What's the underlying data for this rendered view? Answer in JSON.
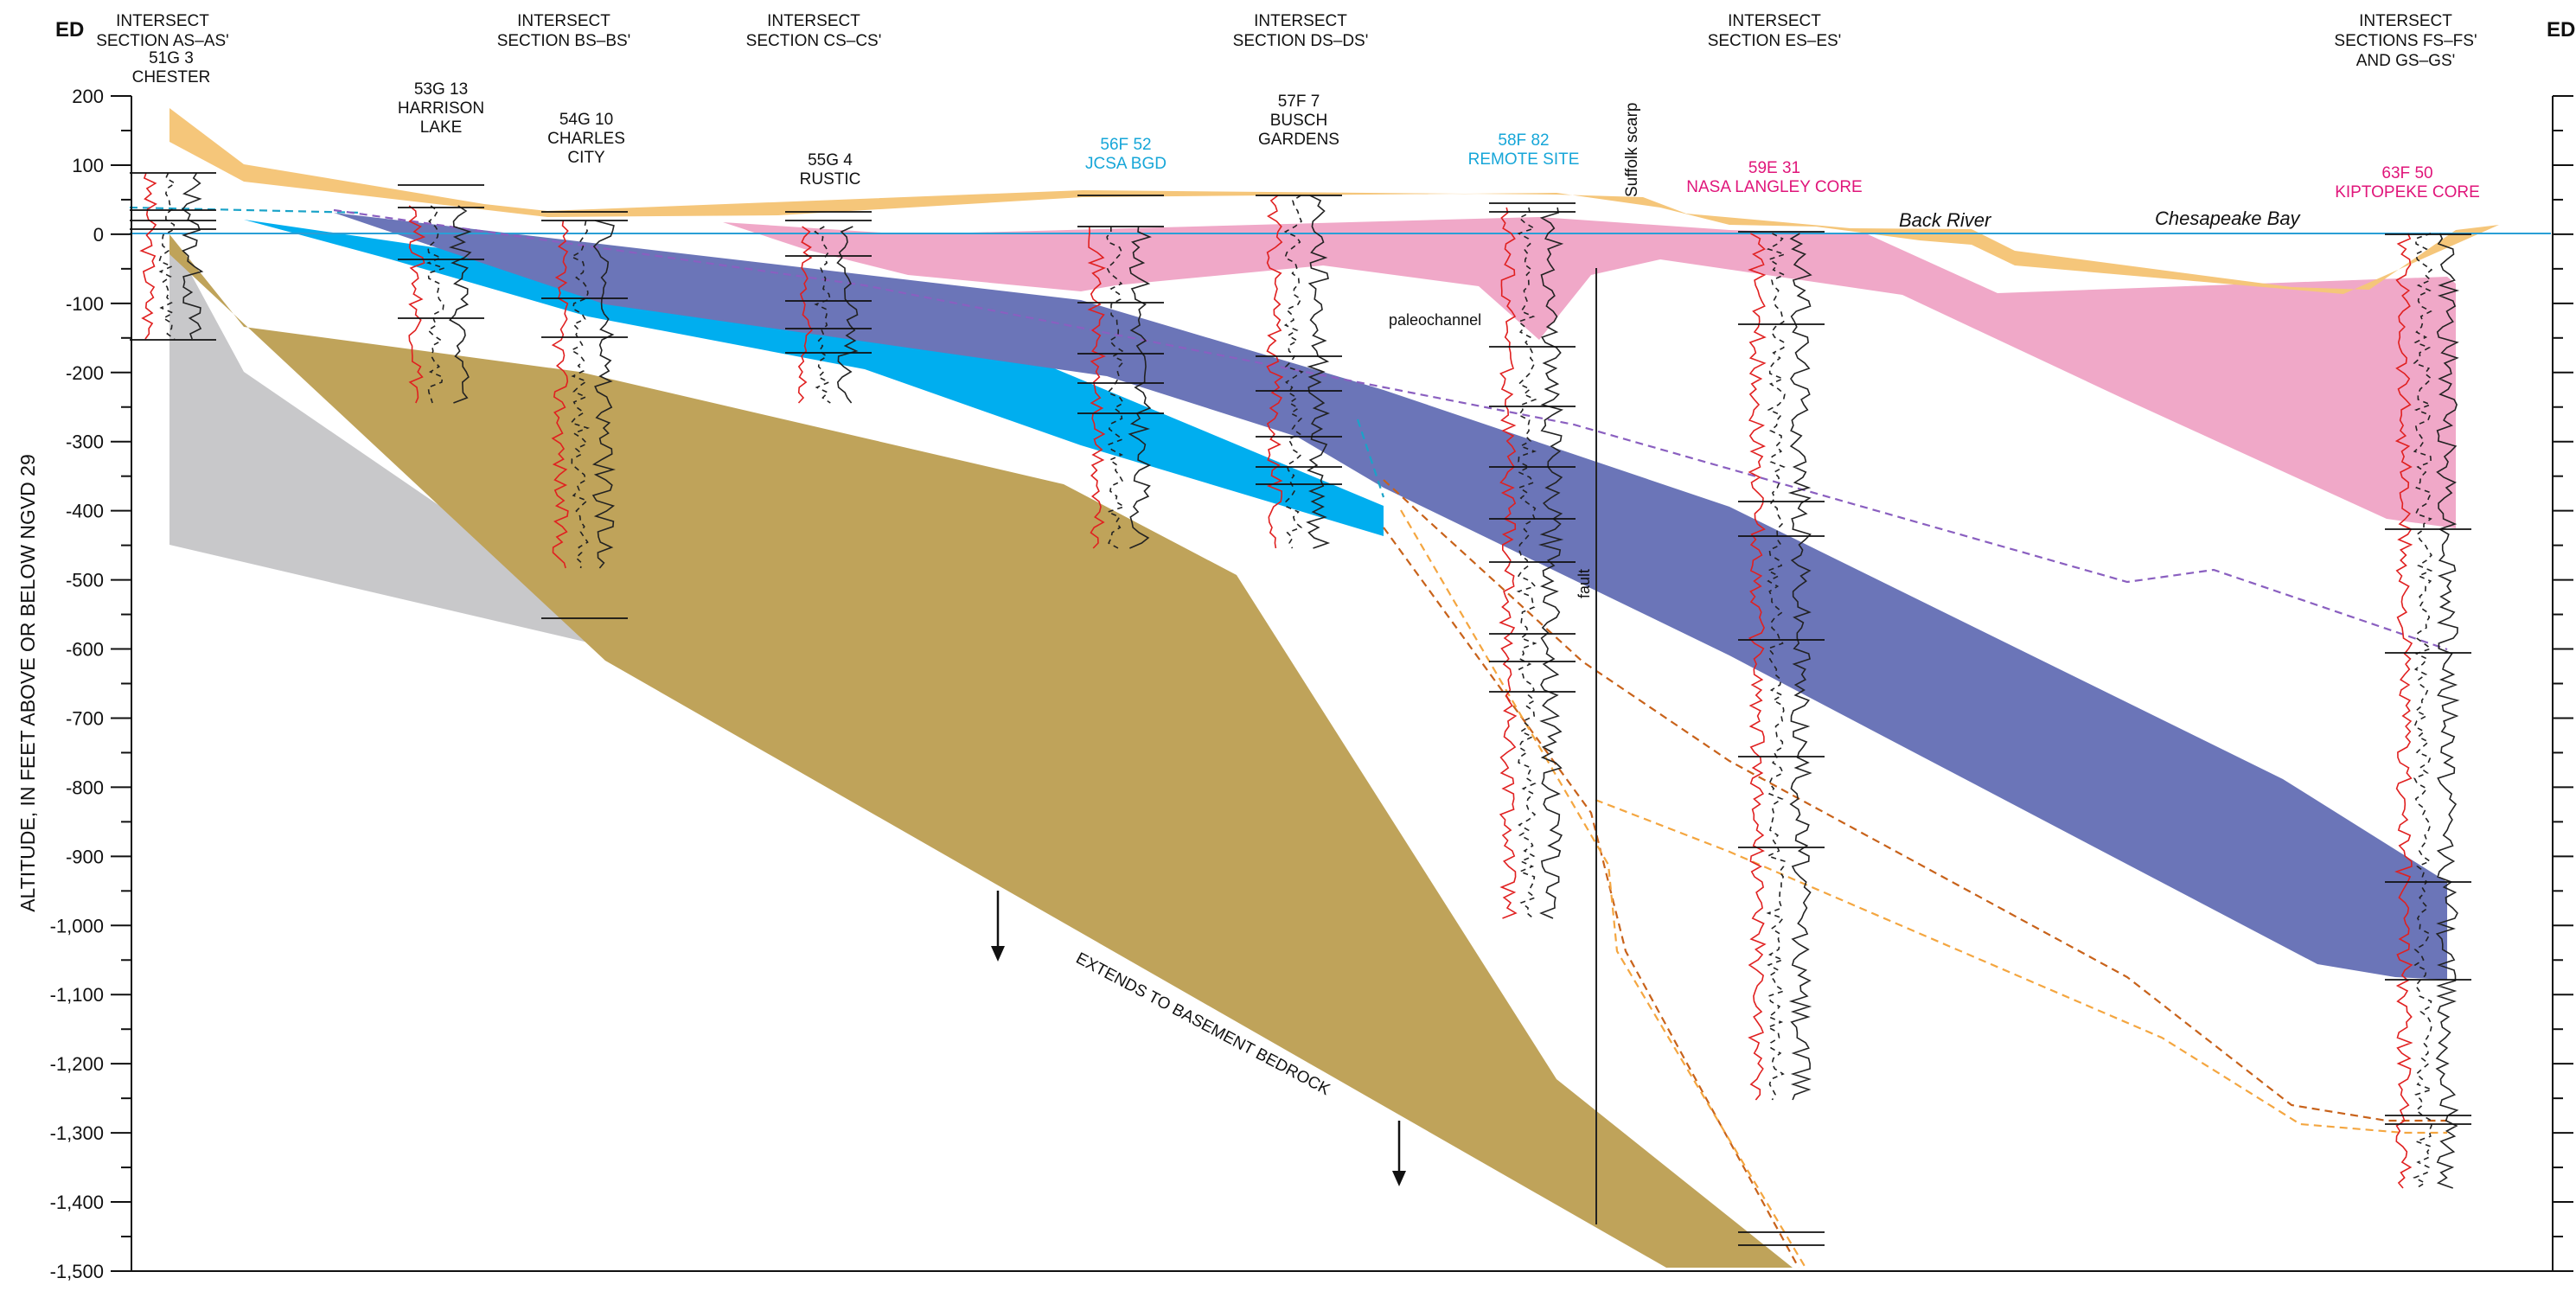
{
  "section_label_left": "ED",
  "section_label_right": "ED'",
  "y_axis": {
    "label": "ALTITUDE, IN FEET ABOVE OR BELOW NGVD 29",
    "min": -1500,
    "max": 200,
    "ticks": [
      "200",
      "100",
      "0",
      "-100",
      "-200",
      "-300",
      "-400",
      "-500",
      "-600",
      "-700",
      "-800",
      "-900",
      "-1,000",
      "-1,100",
      "-1,200",
      "-1,300",
      "-1,400",
      "-1,500"
    ]
  },
  "intersects": [
    {
      "lines": [
        "INTERSECT",
        "SECTION AS–AS'"
      ]
    },
    {
      "lines": [
        "INTERSECT",
        "SECTION BS–BS'"
      ]
    },
    {
      "lines": [
        "INTERSECT",
        "SECTION CS–CS'"
      ]
    },
    {
      "lines": [
        "INTERSECT",
        "SECTION DS–DS'"
      ]
    },
    {
      "lines": [
        "INTERSECT",
        "SECTION ES–ES'"
      ]
    },
    {
      "lines": [
        "INTERSECT",
        "SECTIONS FS–FS'",
        "AND GS–GS'"
      ]
    }
  ],
  "wells": [
    {
      "lines": [
        "51G  3",
        "CHESTER"
      ],
      "color": "#111111"
    },
    {
      "lines": [
        "53G 13",
        "HARRISON",
        "LAKE"
      ],
      "color": "#111111"
    },
    {
      "lines": [
        "54G 10",
        "CHARLES",
        "CITY"
      ],
      "color": "#111111"
    },
    {
      "lines": [
        "55G  4",
        "RUSTIC"
      ],
      "color": "#111111"
    },
    {
      "lines": [
        "56F 52",
        "JCSA BGD"
      ],
      "color": "#16a6d8"
    },
    {
      "lines": [
        "57F  7",
        "BUSCH",
        "GARDENS"
      ],
      "color": "#111111"
    },
    {
      "lines": [
        "58F 82",
        "REMOTE SITE"
      ],
      "color": "#16a6d8"
    },
    {
      "lines": [
        "59E 31",
        "NASA LANGLEY CORE"
      ],
      "color": "#e0157a"
    },
    {
      "lines": [
        "63F  50",
        "KIPTOPEKE CORE"
      ],
      "color": "#e0157a"
    }
  ],
  "annotations": {
    "suffolk_scarp": "Suffolk scarp",
    "back_river": "Back River",
    "chesapeake_bay": "Chesapeake Bay",
    "paleochannel": "paleochannel",
    "fault": "fault",
    "basement": "EXTENDS TO BASEMENT BEDROCK"
  },
  "colors": {
    "surficial": "#f5c67a",
    "pink_unit": "#f0a8c8",
    "cyan_unit": "#00aeef",
    "purple_unit": "#6b75b8",
    "brown_unit": "#bfa35a",
    "gray_unit": "#c8c8ca",
    "sea_level": "#2a9fd6"
  }
}
